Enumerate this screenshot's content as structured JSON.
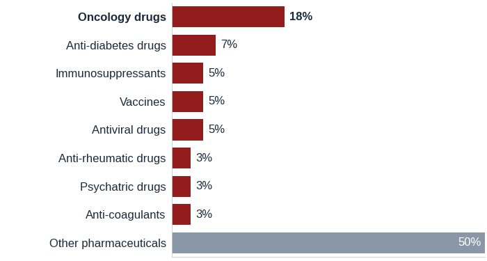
{
  "chart_data": {
    "type": "bar",
    "orientation": "horizontal",
    "categories": [
      "Oncology drugs",
      "Anti-diabetes drugs",
      "Immunosuppressants",
      "Vaccines",
      "Antiviral drugs",
      "Anti-rheumatic drugs",
      "Psychatric drugs",
      "Anti-coagulants",
      "Other pharmaceuticals"
    ],
    "values": [
      18,
      7,
      5,
      5,
      5,
      3,
      3,
      3,
      50
    ],
    "value_labels": [
      "18%",
      "7%",
      "5%",
      "5%",
      "5%",
      "3%",
      "3%",
      "3%",
      "50%"
    ],
    "colors": [
      "#931c1c",
      "#931c1c",
      "#931c1c",
      "#931c1c",
      "#931c1c",
      "#931c1c",
      "#931c1c",
      "#931c1c",
      "#8a97a6"
    ],
    "xlim": [
      0,
      50
    ],
    "data_labels": true,
    "tick_labels": "y",
    "grid": false
  }
}
